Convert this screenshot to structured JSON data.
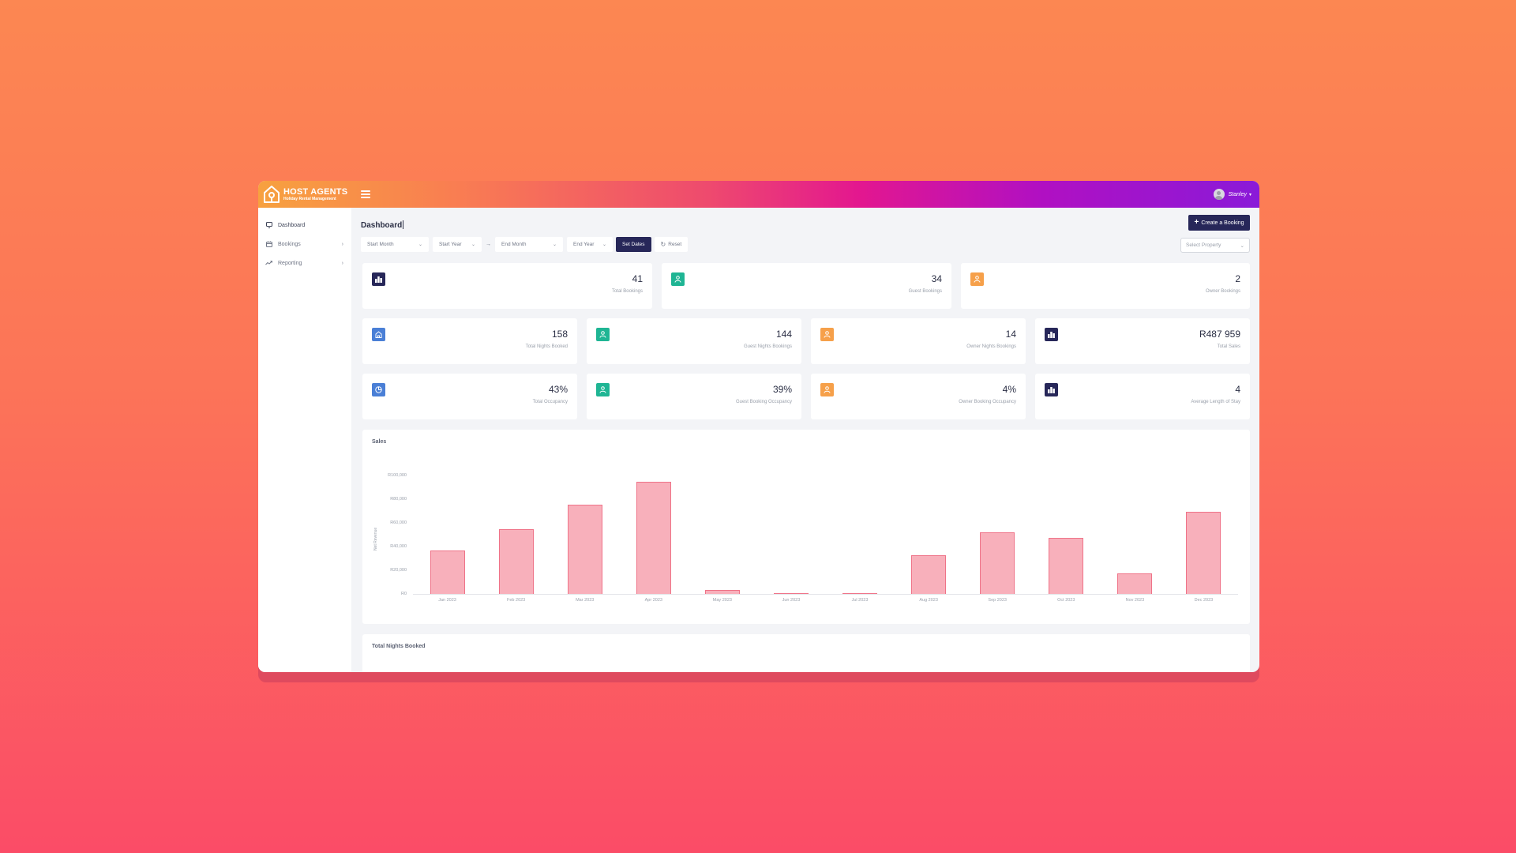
{
  "brand": {
    "name": "HOST AGENTS",
    "tagline": "Holiday Rental Management"
  },
  "user": {
    "name": "Stanley"
  },
  "sidebar": {
    "items": [
      {
        "label": "Dashboard",
        "icon": "monitor-icon",
        "has_children": false
      },
      {
        "label": "Bookings",
        "icon": "calendar-icon",
        "has_children": true
      },
      {
        "label": "Reporting",
        "icon": "trending-up-icon",
        "has_children": true
      }
    ]
  },
  "page": {
    "title": "Dashboard"
  },
  "toolbar": {
    "create_booking": "Create a Booking",
    "start_month": "Start Month",
    "start_year": "Start Year",
    "end_month": "End Month",
    "end_year": "End Year",
    "range_arrow": "→",
    "set_dates": "Set Dates",
    "reset": "Reset",
    "property_placeholder": "Select Property"
  },
  "colors": {
    "navy": "#272759",
    "green": "#1fb594",
    "orange": "#f6a04a",
    "blue": "#4a7fd6",
    "bar_fill": "#f8b0bb",
    "bar_border": "#ef7388"
  },
  "stats": {
    "row1": [
      {
        "value": "41",
        "label": "Total Bookings",
        "icon": "building-icon",
        "color": "navy"
      },
      {
        "value": "34",
        "label": "Guest Bookings",
        "icon": "user-icon",
        "color": "green"
      },
      {
        "value": "2",
        "label": "Owner Bookings",
        "icon": "user-icon",
        "color": "orange"
      }
    ],
    "row2": [
      {
        "value": "158",
        "label": "Total Nights Booked",
        "icon": "home-icon",
        "color": "blue"
      },
      {
        "value": "144",
        "label": "Guest Nights Bookings",
        "icon": "user-icon",
        "color": "green"
      },
      {
        "value": "14",
        "label": "Owner Nights Bookings",
        "icon": "user-icon",
        "color": "orange"
      },
      {
        "value": "R487 959",
        "label": "Total Sales",
        "icon": "building-icon",
        "color": "navy"
      }
    ],
    "row3": [
      {
        "value": "43%",
        "label": "Total Occupancy",
        "icon": "pie-chart-icon",
        "color": "blue"
      },
      {
        "value": "39%",
        "label": "Guest Booking Occupancy",
        "icon": "user-icon",
        "color": "green"
      },
      {
        "value": "4%",
        "label": "Owner Booking Occupancy",
        "icon": "user-icon",
        "color": "orange"
      },
      {
        "value": "4",
        "label": "Average Length of Stay",
        "icon": "building-icon",
        "color": "navy"
      }
    ]
  },
  "sales_chart": {
    "title": "Sales",
    "ylabel": "Net Revenue",
    "yticks": [
      "R100,000",
      "R80,000",
      "R60,000",
      "R40,000",
      "R20,000",
      "R0"
    ]
  },
  "chart_data": {
    "type": "bar",
    "title": "Sales",
    "xlabel": "",
    "ylabel": "Net Revenue",
    "categories": [
      "Jan 2023",
      "Feb 2023",
      "Mar 2023",
      "Apr 2023",
      "May 2023",
      "Jun 2023",
      "Jul 2023",
      "Aug 2023",
      "Sep 2023",
      "Oct 2023",
      "Nov 2023",
      "Dec 2023"
    ],
    "values": [
      36700,
      54700,
      75300,
      94700,
      3300,
      700,
      700,
      32700,
      52000,
      47300,
      17300,
      69300
    ],
    "ylim": [
      0,
      100000
    ],
    "yticks": [
      "R0",
      "R20,000",
      "R40,000",
      "R60,000",
      "R80,000",
      "R100,000"
    ],
    "grid": false,
    "legend": null
  },
  "nights_chart": {
    "title": "Total Nights Booked"
  }
}
